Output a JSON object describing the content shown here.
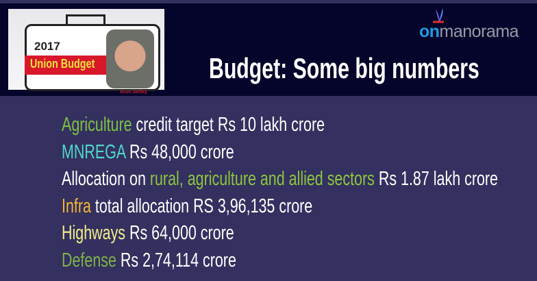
{
  "badge": {
    "year": "2017",
    "label": "Union Budget",
    "caption": "Arun Jaitley"
  },
  "logo": {
    "prefix": "on",
    "name": "manorama"
  },
  "title": "Budget: Some big numbers",
  "colors": {
    "background": "#34305f",
    "header": "#05052b"
  },
  "items": [
    {
      "highlight": "Agriculture",
      "color": "#7dc242",
      "pre": "",
      "rest": " credit target Rs 10 lakh crore"
    },
    {
      "highlight": "MNREGA",
      "color": "#4fd9c8",
      "pre": "",
      "rest": " Rs 48,000 crore"
    },
    {
      "highlight": "rural, agriculture and allied sectors",
      "color": "#8dc63f",
      "pre": "Allocation on ",
      "rest": " Rs 1.87 lakh crore"
    },
    {
      "highlight": "Infra",
      "color": "#f5b531",
      "pre": "",
      "rest": " total allocation RS 3,96,135 crore"
    },
    {
      "highlight": "Highways",
      "color": "#f2ee8a",
      "pre": "",
      "rest": " Rs 64,000 crore"
    },
    {
      "highlight": "Defense",
      "color": "#7fb24a",
      "pre": "",
      "rest": " Rs 2,74,114 crore"
    }
  ]
}
